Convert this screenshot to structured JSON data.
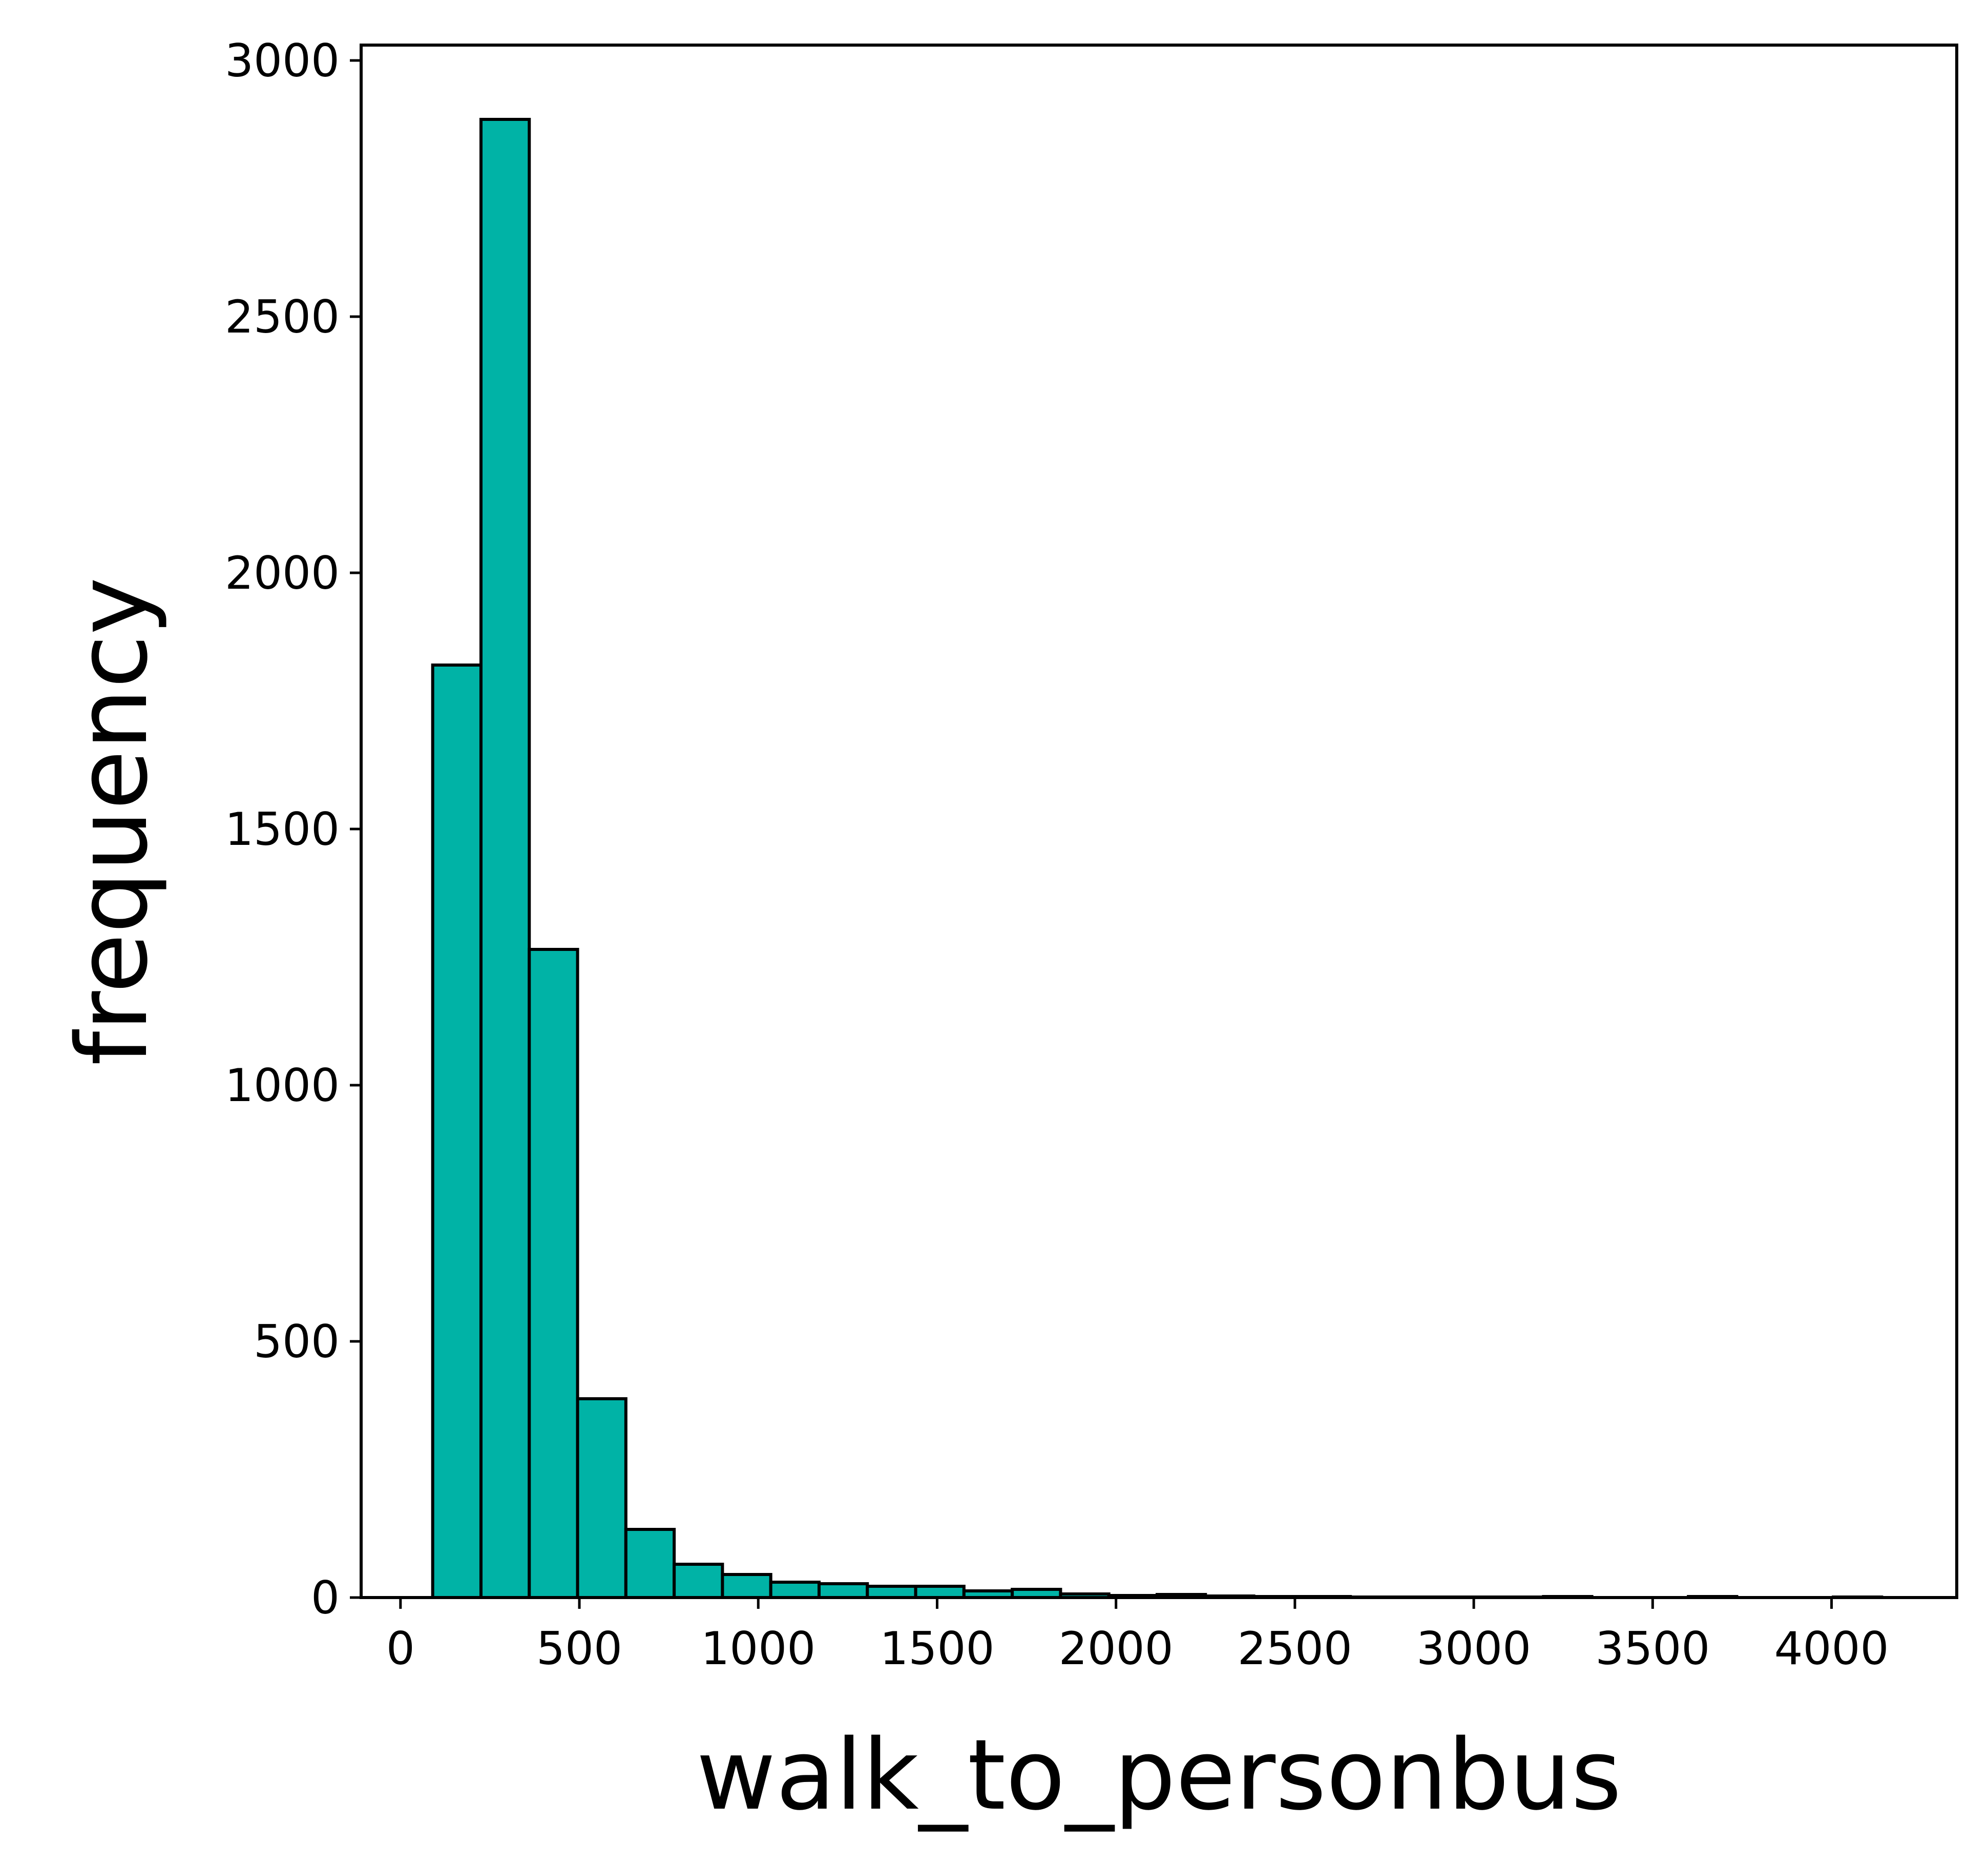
{
  "chart_data": {
    "type": "bar",
    "xlabel": "walk_to_personbus",
    "ylabel": "frequency",
    "xlim": [
      -110,
      4350
    ],
    "ylim": [
      0,
      3030
    ],
    "xticks": [
      0,
      500,
      1000,
      1500,
      2000,
      2500,
      3000,
      3500,
      4000
    ],
    "yticks": [
      0,
      500,
      1000,
      1500,
      2000,
      2500,
      3000
    ],
    "bins": {
      "edges": [
        90,
        225,
        360,
        495,
        630,
        765,
        900,
        1035,
        1170,
        1305,
        1440,
        1575,
        1710,
        1845,
        1980,
        2115,
        2250,
        2385,
        2520,
        2655,
        2790,
        2925,
        3060,
        3195,
        3330,
        3465,
        3600,
        3735,
        3870,
        4005,
        4140
      ],
      "counts": [
        1820,
        2885,
        1265,
        388,
        133,
        65,
        45,
        30,
        27,
        22,
        22,
        13,
        16,
        7,
        4,
        6,
        3,
        2,
        2,
        1,
        1,
        1,
        1,
        2,
        0,
        0,
        2,
        0,
        0,
        1
      ]
    },
    "bar_color": "#00b3a6",
    "edge_color": "#000000",
    "grid": false,
    "legend": "none"
  }
}
